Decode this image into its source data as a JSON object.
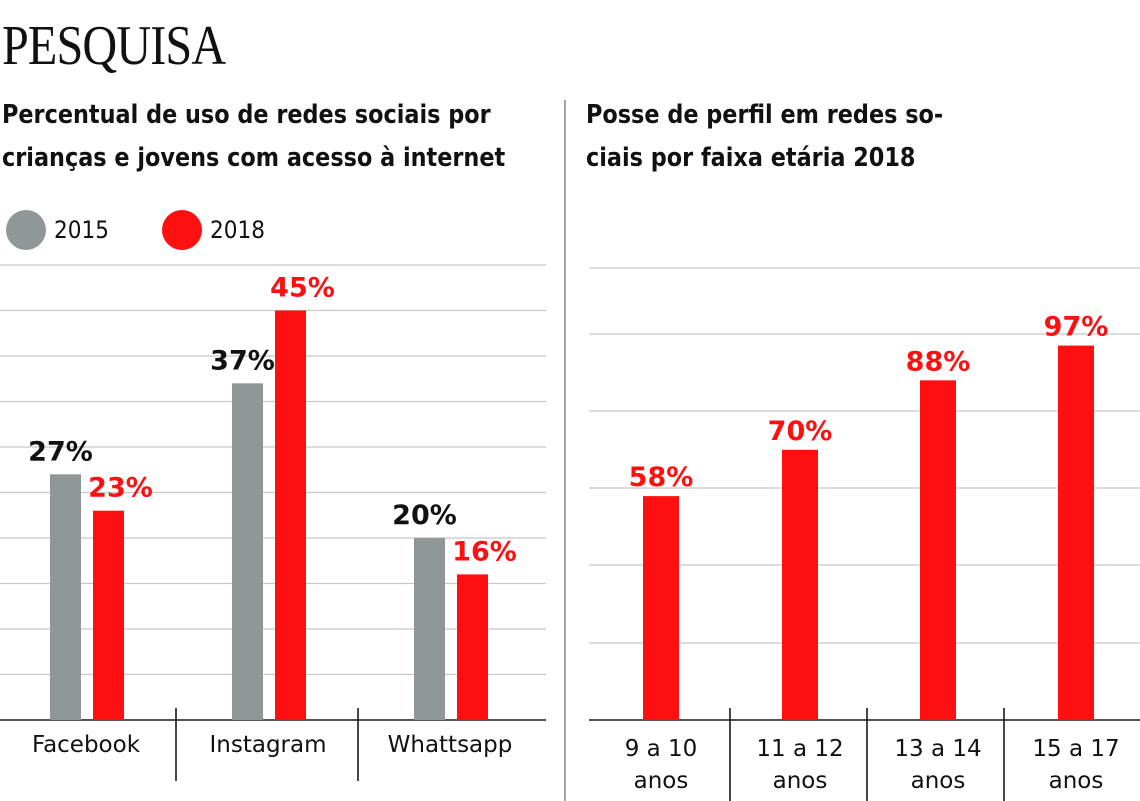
{
  "headline": "PESQUISA",
  "colors": {
    "gray": "#8f9896",
    "red": "#ff0f0f",
    "grid": "#c8c8c8",
    "axis": "#1a1a1a",
    "divider": "#a0a5a5"
  },
  "chart_data": [
    {
      "type": "bar",
      "title_lines": [
        "Percentual de uso de redes sociais por",
        "crianças e jovens com acesso à internet"
      ],
      "legend": [
        "2015",
        "2018"
      ],
      "categories": [
        "Facebook",
        "Instagram",
        "Whattsapp"
      ],
      "series": [
        {
          "name": "2015",
          "values": [
            27,
            37,
            20
          ],
          "labels": [
            "27%",
            "37%",
            "20%"
          ]
        },
        {
          "name": "2018",
          "values": [
            23,
            45,
            16
          ],
          "labels": [
            "23%",
            "45%",
            "16%"
          ]
        }
      ],
      "ylim": [
        0,
        50
      ],
      "grid": true
    },
    {
      "type": "bar",
      "title_lines": [
        "Posse de perfil em redes so-",
        "ciais por faixa etária 2018"
      ],
      "categories": [
        [
          "9 a 10",
          "anos"
        ],
        [
          "11 a 12",
          "anos"
        ],
        [
          "13 a 14",
          "anos"
        ],
        [
          "15 a 17",
          "anos"
        ]
      ],
      "series": [
        {
          "name": "2018",
          "values": [
            58,
            70,
            88,
            97
          ],
          "labels": [
            "58%",
            "70%",
            "88%",
            "97%"
          ]
        }
      ],
      "ylim": [
        0,
        117
      ],
      "grid": true
    }
  ]
}
